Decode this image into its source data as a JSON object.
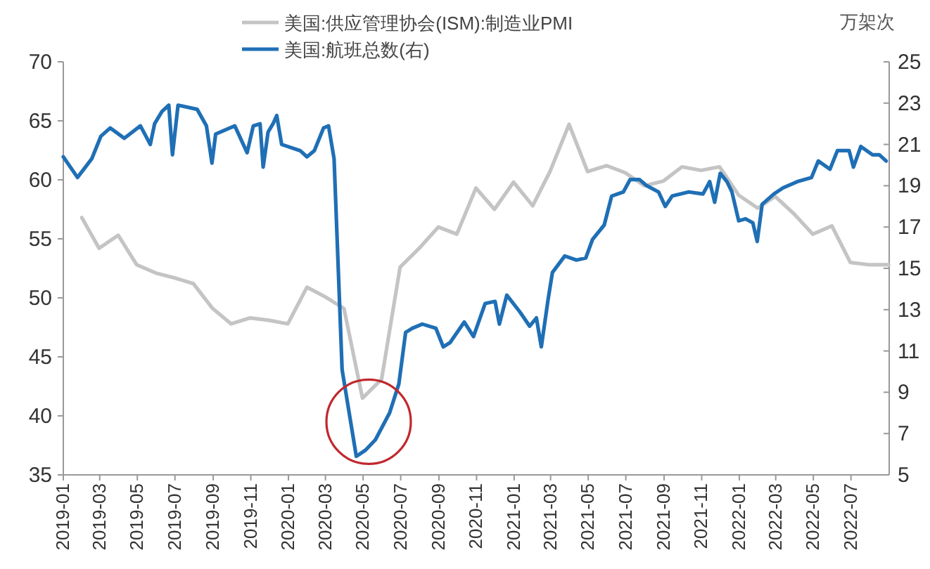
{
  "chart_data": {
    "type": "line",
    "xlim": [
      "2019-01",
      "2022-09"
    ],
    "xticks": [
      {
        "value": "2019-01",
        "label": "2019-01"
      },
      {
        "value": "2019-03",
        "label": "2019-03"
      },
      {
        "value": "2019-05",
        "label": "2019-05"
      },
      {
        "value": "2019-07",
        "label": "2019-07"
      },
      {
        "value": "2019-09",
        "label": "2019-09"
      },
      {
        "value": "2019-11",
        "label": "2019-11"
      },
      {
        "value": "2020-01",
        "label": "2020-01"
      },
      {
        "value": "2020-03",
        "label": "2020-03"
      },
      {
        "value": "2020-05",
        "label": "2020-05"
      },
      {
        "value": "2020-07",
        "label": "2020-07"
      },
      {
        "value": "2020-09",
        "label": "2020-09"
      },
      {
        "value": "2020-11",
        "label": "2020-11"
      },
      {
        "value": "2021-01",
        "label": "2021-01"
      },
      {
        "value": "2021-03",
        "label": "2021-03"
      },
      {
        "value": "2021-05",
        "label": "2021-05"
      },
      {
        "value": "2021-07",
        "label": "2021-07"
      },
      {
        "value": "2021-09",
        "label": "2021-09"
      },
      {
        "value": "2021-11",
        "label": "2021-11"
      },
      {
        "value": "2022-01",
        "label": "2022-01"
      },
      {
        "value": "2022-03",
        "label": "2022-03"
      },
      {
        "value": "2022-05",
        "label": "2022-05"
      },
      {
        "value": "2022-07",
        "label": "2022-07"
      }
    ],
    "ylim": [
      35,
      70
    ],
    "yticks": [
      35,
      40,
      45,
      50,
      55,
      60,
      65,
      70
    ],
    "y2lim": [
      5,
      25
    ],
    "y2ticks": [
      5,
      7,
      9,
      11,
      13,
      15,
      17,
      19,
      21,
      23,
      25
    ],
    "y2label": "万架次",
    "legend": "top",
    "series": [
      {
        "name": "美国:供应管理协会(ISM):制造业PMI",
        "color": "#c4c4c4",
        "x": [
          "2019-01-31",
          "2019-02-28",
          "2019-03-31",
          "2019-04-30",
          "2019-05-31",
          "2019-06-30",
          "2019-07-31",
          "2019-08-31",
          "2019-09-30",
          "2019-10-31",
          "2019-11-30",
          "2019-12-31",
          "2020-01-31",
          "2020-02-29",
          "2020-03-31",
          "2020-04-30",
          "2020-05-31",
          "2020-06-30",
          "2020-07-31",
          "2020-08-31",
          "2020-09-30",
          "2020-10-31",
          "2020-11-30",
          "2020-12-31",
          "2021-01-31",
          "2021-02-28",
          "2021-03-31",
          "2021-04-30",
          "2021-05-31",
          "2021-06-30",
          "2021-07-31",
          "2021-08-31",
          "2021-09-30",
          "2021-10-31",
          "2021-11-30",
          "2021-12-31",
          "2022-01-31",
          "2022-02-28",
          "2022-03-31",
          "2022-04-30",
          "2022-05-31",
          "2022-06-30",
          "2022-07-31",
          "2022-08-31"
        ],
        "values": [
          56.8,
          54.2,
          55.3,
          52.8,
          52.1,
          51.7,
          51.2,
          49.1,
          47.8,
          48.3,
          48.1,
          47.8,
          50.9,
          50.1,
          49.1,
          41.5,
          43.1,
          52.6,
          54.2,
          56.0,
          55.4,
          59.3,
          57.5,
          59.8,
          57.8,
          60.7,
          64.7,
          60.7,
          61.2,
          60.6,
          59.5,
          59.9,
          61.1,
          60.8,
          61.1,
          58.7,
          57.6,
          58.6,
          57.1,
          55.4,
          56.1,
          53.0,
          52.8,
          52.8
        ]
      },
      {
        "name": "美国:航班总数(右)",
        "color": "#1f6fb5",
        "axis": "y2",
        "x": [
          "2019-01-01",
          "2019-01-24",
          "2019-02-16",
          "2019-03-03",
          "2019-03-18",
          "2019-04-10",
          "2019-05-06",
          "2019-05-22",
          "2019-05-29",
          "2019-06-10",
          "2019-06-21",
          "2019-06-27",
          "2019-07-06",
          "2019-08-06",
          "2019-08-21",
          "2019-08-30",
          "2019-09-05",
          "2019-10-06",
          "2019-10-26",
          "2019-11-05",
          "2019-11-16",
          "2019-11-21",
          "2019-11-29",
          "2019-12-07",
          "2019-12-13",
          "2019-12-21",
          "2020-01-20",
          "2020-01-31",
          "2020-02-12",
          "2020-02-27",
          "2020-03-06",
          "2020-03-15",
          "2020-03-28",
          "2020-04-20",
          "2020-05-05",
          "2020-05-21",
          "2020-06-13",
          "2020-06-28",
          "2020-07-09",
          "2020-07-20",
          "2020-08-05",
          "2020-08-27",
          "2020-09-08",
          "2020-09-19",
          "2020-10-12",
          "2020-10-27",
          "2020-11-15",
          "2020-12-01",
          "2020-12-08",
          "2020-12-20",
          "2021-01-10",
          "2021-01-26",
          "2021-02-06",
          "2021-02-14",
          "2021-02-25",
          "2021-03-04",
          "2021-03-24",
          "2021-04-12",
          "2021-04-27",
          "2021-05-08",
          "2021-05-27",
          "2021-06-08",
          "2021-06-27",
          "2021-07-08",
          "2021-07-23",
          "2021-08-04",
          "2021-08-23",
          "2021-09-03",
          "2021-09-14",
          "2021-10-11",
          "2021-11-03",
          "2021-11-14",
          "2021-11-22",
          "2021-12-01",
          "2021-12-12",
          "2021-12-20",
          "2021-12-31",
          "2022-01-11",
          "2022-01-23",
          "2022-01-30",
          "2022-02-07",
          "2022-02-26",
          "2022-03-13",
          "2022-04-05",
          "2022-04-28",
          "2022-05-09",
          "2022-05-28",
          "2022-06-09",
          "2022-06-28",
          "2022-07-05",
          "2022-07-17",
          "2022-08-05",
          "2022-08-16",
          "2022-08-27"
        ],
        "values": [
          20.4,
          19.4,
          20.3,
          21.4,
          21.8,
          21.3,
          21.9,
          21.0,
          22.0,
          22.6,
          22.9,
          20.5,
          22.9,
          22.7,
          21.9,
          20.1,
          21.5,
          21.9,
          20.6,
          21.9,
          22.0,
          19.9,
          21.6,
          22.0,
          22.4,
          21.0,
          20.7,
          20.4,
          20.7,
          21.8,
          21.9,
          20.3,
          10.1,
          5.9,
          6.2,
          6.7,
          8.0,
          9.4,
          11.9,
          12.1,
          12.3,
          12.1,
          11.2,
          11.4,
          12.4,
          11.7,
          13.3,
          13.4,
          12.3,
          13.7,
          12.9,
          12.2,
          12.6,
          11.2,
          13.5,
          14.8,
          15.6,
          15.4,
          15.5,
          16.4,
          17.1,
          18.5,
          18.7,
          19.3,
          19.3,
          19.0,
          18.7,
          18.0,
          18.5,
          18.7,
          18.6,
          19.2,
          18.2,
          19.6,
          19.2,
          18.7,
          17.3,
          17.4,
          17.2,
          16.3,
          18.1,
          18.6,
          18.9,
          19.2,
          19.4,
          20.2,
          19.8,
          20.7,
          20.7,
          19.9,
          20.9,
          20.5,
          20.5,
          20.2
        ]
      }
    ]
  }
}
